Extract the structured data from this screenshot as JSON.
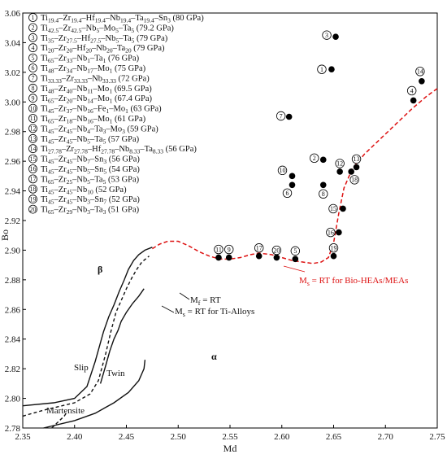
{
  "chart_data": {
    "type": "scatter",
    "xlabel": "Md",
    "ylabel": "Bo",
    "xlim": [
      2.35,
      2.75
    ],
    "ylim": [
      2.78,
      3.06
    ],
    "x_ticks": [
      "2.35",
      "2.40",
      "2.45",
      "2.50",
      "2.55",
      "2.60",
      "2.65",
      "2.70",
      "2.75"
    ],
    "y_ticks": [
      "2.78",
      "2.80",
      "2.82",
      "2.84",
      "2.86",
      "2.88",
      "2.90",
      "2.92",
      "2.94",
      "2.96",
      "2.98",
      "3.00",
      "3.02",
      "3.04",
      "3.06"
    ],
    "legend": [
      {
        "num": "1",
        "parts": [
          [
            "Ti",
            ""
          ],
          [
            "19.4",
            "sub"
          ],
          [
            "–Zr",
            ""
          ],
          [
            "19.4",
            "sub"
          ],
          [
            "–Hf",
            ""
          ],
          [
            "19.4",
            "sub"
          ],
          [
            "–Nb",
            ""
          ],
          [
            "19.4",
            "sub"
          ],
          [
            "–Ta",
            ""
          ],
          [
            "19.4",
            "sub"
          ],
          [
            "–Sn",
            ""
          ],
          [
            "3",
            "sub"
          ],
          [
            " (80 GPa)",
            ""
          ]
        ]
      },
      {
        "num": "2",
        "parts": [
          [
            "Ti",
            ""
          ],
          [
            "42.5",
            "sub"
          ],
          [
            "–Zr",
            ""
          ],
          [
            "42.5",
            "sub"
          ],
          [
            "–Nb",
            ""
          ],
          [
            "5",
            "sub"
          ],
          [
            "–Mo",
            ""
          ],
          [
            "5",
            "sub"
          ],
          [
            "–Ta",
            ""
          ],
          [
            "5",
            "sub"
          ],
          [
            " (79.2 GPa)",
            ""
          ]
        ]
      },
      {
        "num": "3",
        "parts": [
          [
            "Ti",
            ""
          ],
          [
            "35",
            "sub"
          ],
          [
            "–Zr",
            ""
          ],
          [
            "27.5",
            "sub"
          ],
          [
            "–Hf",
            ""
          ],
          [
            "27.5",
            "sub"
          ],
          [
            "–Nb",
            ""
          ],
          [
            "5",
            "sub"
          ],
          [
            "–Ta",
            ""
          ],
          [
            "5",
            "sub"
          ],
          [
            " (79 GPa)",
            ""
          ]
        ]
      },
      {
        "num": "4",
        "parts": [
          [
            "Ti",
            ""
          ],
          [
            "20",
            "sub"
          ],
          [
            "–Zr",
            ""
          ],
          [
            "20",
            "sub"
          ],
          [
            "–Hf",
            ""
          ],
          [
            "20",
            "sub"
          ],
          [
            "–Nb",
            ""
          ],
          [
            "20",
            "sub"
          ],
          [
            "–Ta",
            ""
          ],
          [
            "20",
            "sub"
          ],
          [
            " (79 GPa)",
            ""
          ]
        ]
      },
      {
        "num": "5",
        "parts": [
          [
            "Ti",
            ""
          ],
          [
            "65",
            "sub"
          ],
          [
            "–Zr",
            ""
          ],
          [
            "33",
            "sub"
          ],
          [
            "–Nb",
            ""
          ],
          [
            "1",
            "sub"
          ],
          [
            "–Ta",
            ""
          ],
          [
            "1",
            "sub"
          ],
          [
            " (76 GPa)",
            ""
          ]
        ]
      },
      {
        "num": "6",
        "parts": [
          [
            "Ti",
            ""
          ],
          [
            "48",
            "sub"
          ],
          [
            "–Zr",
            ""
          ],
          [
            "34",
            "sub"
          ],
          [
            "–Nb",
            ""
          ],
          [
            "17",
            "sub"
          ],
          [
            "–Mo",
            ""
          ],
          [
            "1",
            "sub"
          ],
          [
            " (75 GPa)",
            ""
          ]
        ]
      },
      {
        "num": "7",
        "parts": [
          [
            "Ti",
            ""
          ],
          [
            "33.33",
            "sub"
          ],
          [
            "–Zr",
            ""
          ],
          [
            "33.33",
            "sub"
          ],
          [
            "–Nb",
            ""
          ],
          [
            "33.33",
            "sub"
          ],
          [
            " (72 GPa)",
            ""
          ]
        ]
      },
      {
        "num": "8",
        "parts": [
          [
            "Ti",
            ""
          ],
          [
            "48",
            "sub"
          ],
          [
            "–Zr",
            ""
          ],
          [
            "40",
            "sub"
          ],
          [
            "–Nb",
            ""
          ],
          [
            "11",
            "sub"
          ],
          [
            "–Mo",
            ""
          ],
          [
            "1",
            "sub"
          ],
          [
            " (69.5 GPa)",
            ""
          ]
        ]
      },
      {
        "num": "9",
        "parts": [
          [
            "Ti",
            ""
          ],
          [
            "65",
            "sub"
          ],
          [
            "–Zr",
            ""
          ],
          [
            "20",
            "sub"
          ],
          [
            "–Nb",
            ""
          ],
          [
            "14",
            "sub"
          ],
          [
            "–Mo",
            ""
          ],
          [
            "1",
            "sub"
          ],
          [
            " (67.4 GPa)",
            ""
          ]
        ]
      },
      {
        "num": "10",
        "parts": [
          [
            "Ti",
            ""
          ],
          [
            "45",
            "sub"
          ],
          [
            "–Zr",
            ""
          ],
          [
            "37",
            "sub"
          ],
          [
            "–Nb",
            ""
          ],
          [
            "16",
            "sub"
          ],
          [
            "–Fe",
            ""
          ],
          [
            "1",
            "sub"
          ],
          [
            "–Mo",
            ""
          ],
          [
            "1",
            "sub"
          ],
          [
            " (63 GPa)",
            ""
          ]
        ]
      },
      {
        "num": "11",
        "parts": [
          [
            "Ti",
            ""
          ],
          [
            "65",
            "sub"
          ],
          [
            "–Zr",
            ""
          ],
          [
            "18",
            "sub"
          ],
          [
            "–Nb",
            ""
          ],
          [
            "16",
            "sub"
          ],
          [
            "–Mo",
            ""
          ],
          [
            "1",
            "sub"
          ],
          [
            " (61 GPa)",
            ""
          ]
        ]
      },
      {
        "num": "12",
        "parts": [
          [
            "Ti",
            ""
          ],
          [
            "45",
            "sub"
          ],
          [
            "–Zr",
            ""
          ],
          [
            "45",
            "sub"
          ],
          [
            "–Nb",
            ""
          ],
          [
            "4",
            "sub"
          ],
          [
            "–Ta",
            ""
          ],
          [
            "3",
            "sub"
          ],
          [
            "–Mo",
            ""
          ],
          [
            "3",
            "sub"
          ],
          [
            " (59 GPa)",
            ""
          ]
        ]
      },
      {
        "num": "13",
        "parts": [
          [
            "Ti",
            ""
          ],
          [
            "45",
            "sub"
          ],
          [
            "–Zr",
            ""
          ],
          [
            "45",
            "sub"
          ],
          [
            "–Nb",
            ""
          ],
          [
            "5",
            "sub"
          ],
          [
            "–Ta",
            ""
          ],
          [
            "5",
            "sub"
          ],
          [
            " (57 GPa)",
            ""
          ]
        ]
      },
      {
        "num": "14",
        "parts": [
          [
            "Ti",
            ""
          ],
          [
            "27.78",
            "sub"
          ],
          [
            "–Zr",
            ""
          ],
          [
            "27.78",
            "sub"
          ],
          [
            "–Hf",
            ""
          ],
          [
            "27.78",
            "sub"
          ],
          [
            "–Nb",
            ""
          ],
          [
            "8.33",
            "sub"
          ],
          [
            "–Ta",
            ""
          ],
          [
            "8.33",
            "sub"
          ],
          [
            " (56 GPa)",
            ""
          ]
        ]
      },
      {
        "num": "15",
        "parts": [
          [
            "Ti",
            ""
          ],
          [
            "45",
            "sub"
          ],
          [
            "–Zr",
            ""
          ],
          [
            "45",
            "sub"
          ],
          [
            "–Nb",
            ""
          ],
          [
            "7",
            "sub"
          ],
          [
            "–Sn",
            ""
          ],
          [
            "3",
            "sub"
          ],
          [
            " (56 GPa)",
            ""
          ]
        ]
      },
      {
        "num": "16",
        "parts": [
          [
            "Ti",
            ""
          ],
          [
            "45",
            "sub"
          ],
          [
            "–Zr",
            ""
          ],
          [
            "45",
            "sub"
          ],
          [
            "–Nb",
            ""
          ],
          [
            "5",
            "sub"
          ],
          [
            "–Sn",
            ""
          ],
          [
            "5",
            "sub"
          ],
          [
            " (54 GPa)",
            ""
          ]
        ]
      },
      {
        "num": "17",
        "parts": [
          [
            "Ti",
            ""
          ],
          [
            "65",
            "sub"
          ],
          [
            "–Zr",
            ""
          ],
          [
            "25",
            "sub"
          ],
          [
            "–Nb",
            ""
          ],
          [
            "5",
            "sub"
          ],
          [
            "–Ta",
            ""
          ],
          [
            "5",
            "sub"
          ],
          [
            " (53 GPa)",
            ""
          ]
        ]
      },
      {
        "num": "18",
        "parts": [
          [
            "Ti",
            ""
          ],
          [
            "45",
            "sub"
          ],
          [
            "–Zr",
            ""
          ],
          [
            "45",
            "sub"
          ],
          [
            "–Nb",
            ""
          ],
          [
            "10",
            "sub"
          ],
          [
            " (52 GPa)",
            ""
          ]
        ]
      },
      {
        "num": "19",
        "parts": [
          [
            "Ti",
            ""
          ],
          [
            "45",
            "sub"
          ],
          [
            "–Zr",
            ""
          ],
          [
            "45",
            "sub"
          ],
          [
            "–Nb",
            ""
          ],
          [
            "3",
            "sub"
          ],
          [
            "–Sn",
            ""
          ],
          [
            "7",
            "sub"
          ],
          [
            " (52 GPa)",
            ""
          ]
        ]
      },
      {
        "num": "20",
        "parts": [
          [
            "Ti",
            ""
          ],
          [
            "65",
            "sub"
          ],
          [
            "–Zr",
            ""
          ],
          [
            "29",
            "sub"
          ],
          [
            "–Nb",
            ""
          ],
          [
            "3",
            "sub"
          ],
          [
            "–Ta",
            ""
          ],
          [
            "3",
            "sub"
          ],
          [
            " (51 GPa)",
            ""
          ]
        ]
      }
    ],
    "points": [
      {
        "num": "1",
        "x": 2.648,
        "y": 3.022
      },
      {
        "num": "2",
        "x": 2.64,
        "y": 2.961
      },
      {
        "num": "3",
        "x": 2.652,
        "y": 3.044
      },
      {
        "num": "4",
        "x": 2.727,
        "y": 3.001
      },
      {
        "num": "5",
        "x": 2.613,
        "y": 2.894
      },
      {
        "num": "6",
        "x": 2.61,
        "y": 2.944
      },
      {
        "num": "7",
        "x": 2.607,
        "y": 2.99
      },
      {
        "num": "8",
        "x": 2.64,
        "y": 2.944
      },
      {
        "num": "9",
        "x": 2.549,
        "y": 2.895
      },
      {
        "num": "10",
        "x": 2.61,
        "y": 2.95
      },
      {
        "num": "11",
        "x": 2.539,
        "y": 2.895
      },
      {
        "num": "12",
        "x": 2.656,
        "y": 2.953
      },
      {
        "num": "13",
        "x": 2.672,
        "y": 2.956
      },
      {
        "num": "14",
        "x": 2.735,
        "y": 3.014
      },
      {
        "num": "15",
        "x": 2.659,
        "y": 2.928
      },
      {
        "num": "16",
        "x": 2.655,
        "y": 2.912
      },
      {
        "num": "17",
        "x": 2.578,
        "y": 2.896
      },
      {
        "num": "18",
        "x": 2.667,
        "y": 2.953
      },
      {
        "num": "19",
        "x": 2.65,
        "y": 2.896
      },
      {
        "num": "20",
        "x": 2.595,
        "y": 2.895
      }
    ],
    "curves": [
      {
        "name": "ms-bio-heas",
        "color": "#dd1111",
        "style": "dashed",
        "x": [
          2.475,
          2.482,
          2.49,
          2.5,
          2.51,
          2.52,
          2.53,
          2.54,
          2.55,
          2.56,
          2.57,
          2.578,
          2.59,
          2.6,
          2.61,
          2.62,
          2.63,
          2.638,
          2.645,
          2.65,
          2.655,
          2.66,
          2.668,
          2.68,
          2.695,
          2.71,
          2.725,
          2.74,
          2.75
        ],
        "y": [
          2.901,
          2.904,
          2.906,
          2.906,
          2.903,
          2.899,
          2.896,
          2.894,
          2.894,
          2.895,
          2.897,
          2.898,
          2.897,
          2.895,
          2.893,
          2.892,
          2.891,
          2.892,
          2.895,
          2.905,
          2.925,
          2.942,
          2.955,
          2.965,
          2.975,
          2.985,
          2.995,
          3.004,
          3.009
        ]
      },
      {
        "name": "ms-ti-alloys",
        "color": "#111111",
        "style": "solid",
        "x": [
          2.35,
          2.38,
          2.4,
          2.412,
          2.42,
          2.428,
          2.433,
          2.438,
          2.443,
          2.448,
          2.452,
          2.457,
          2.462,
          2.468,
          2.475
        ],
        "y": [
          2.795,
          2.797,
          2.8,
          2.808,
          2.825,
          2.845,
          2.855,
          2.863,
          2.872,
          2.88,
          2.887,
          2.893,
          2.897,
          2.9,
          2.902
        ]
      },
      {
        "name": "ms-dashed-black",
        "color": "#111111",
        "style": "dashed",
        "x": [
          2.35,
          2.37,
          2.4,
          2.415,
          2.423,
          2.43,
          2.435,
          2.44,
          2.445,
          2.45,
          2.455,
          2.46,
          2.465,
          2.472
        ],
        "y": [
          2.788,
          2.792,
          2.797,
          2.803,
          2.812,
          2.83,
          2.845,
          2.858,
          2.866,
          2.874,
          2.881,
          2.887,
          2.892,
          2.896
        ]
      },
      {
        "name": "mf-rt",
        "color": "#111111",
        "style": "solid",
        "x": [
          2.425,
          2.43,
          2.434,
          2.438,
          2.442,
          2.445,
          2.45,
          2.456,
          2.462,
          2.467
        ],
        "y": [
          2.81,
          2.822,
          2.832,
          2.84,
          2.846,
          2.852,
          2.858,
          2.864,
          2.869,
          2.874
        ]
      },
      {
        "name": "lower-solid",
        "color": "#111111",
        "style": "solid",
        "x": [
          2.37,
          2.4,
          2.42,
          2.438,
          2.452,
          2.462,
          2.467,
          2.468
        ],
        "y": [
          2.78,
          2.785,
          2.79,
          2.797,
          2.804,
          2.812,
          2.82,
          2.826
        ]
      },
      {
        "name": "lower-dashed",
        "color": "#111111",
        "style": "dashed",
        "x": [
          2.378,
          2.384,
          2.39,
          2.392
        ],
        "y": [
          2.78,
          2.784,
          2.788,
          2.79
        ]
      }
    ],
    "annotations": {
      "beta": "β",
      "alpha": "α",
      "slip": "Slip",
      "twin": "Twin",
      "martensite": "Martensite",
      "ms_ti_main": "M",
      "ms_ti_sub": "s",
      "ms_ti_rest": " = RT for Ti-Alloys",
      "mf_main": "M",
      "mf_sub": "f",
      "mf_rest": " = RT",
      "ms_bio_main": "M",
      "ms_bio_sub": "s",
      "ms_bio_rest": " = RT for Bio-HEAs/MEAs"
    }
  }
}
